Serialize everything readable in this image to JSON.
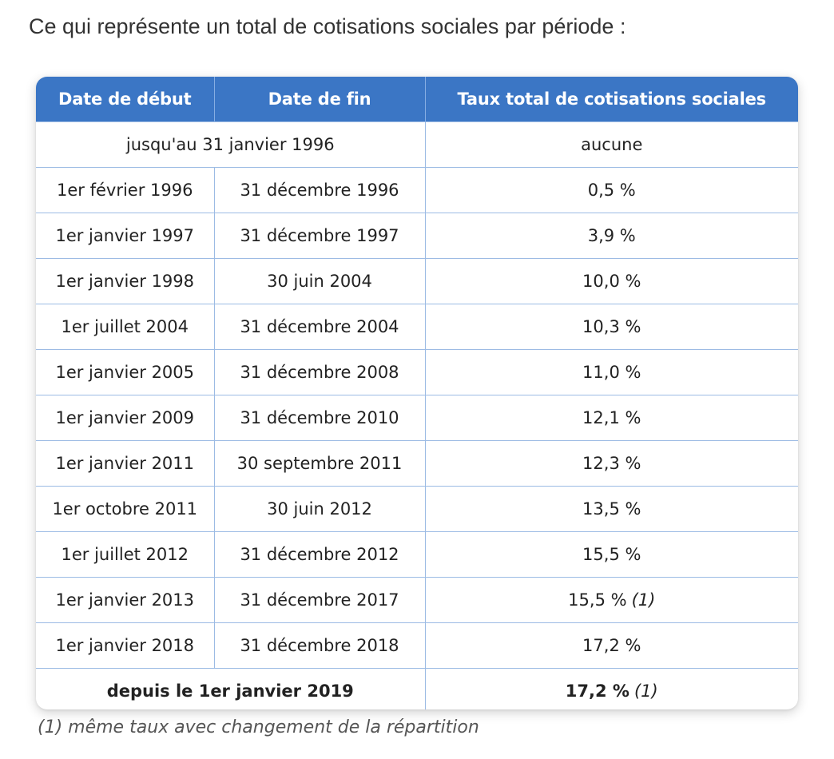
{
  "intro": "Ce qui représente un total de cotisations sociales par période :",
  "table": {
    "headers": [
      "Date de début",
      "Date de fin",
      "Taux total de cotisations sociales"
    ],
    "first_row": {
      "period": "jusqu'au 31 janvier 1996",
      "rate": "aucune"
    },
    "rows": [
      {
        "start": "1er février 1996",
        "end": "31 décembre 1996",
        "rate": "0,5 %",
        "note": ""
      },
      {
        "start": "1er janvier 1997",
        "end": "31 décembre 1997",
        "rate": "3,9 %",
        "note": ""
      },
      {
        "start": "1er janvier 1998",
        "end": "30 juin 2004",
        "rate": "10,0 %",
        "note": ""
      },
      {
        "start": "1er juillet 2004",
        "end": "31 décembre 2004",
        "rate": "10,3 %",
        "note": ""
      },
      {
        "start": "1er janvier 2005",
        "end": "31 décembre 2008",
        "rate": "11,0 %",
        "note": ""
      },
      {
        "start": "1er janvier 2009",
        "end": "31 décembre 2010",
        "rate": "12,1 %",
        "note": ""
      },
      {
        "start": "1er janvier 2011",
        "end": "30 septembre 2011",
        "rate": "12,3 %",
        "note": ""
      },
      {
        "start": "1er octobre 2011",
        "end": "30 juin 2012",
        "rate": "13,5 %",
        "note": ""
      },
      {
        "start": "1er juillet 2012",
        "end": "31 décembre 2012",
        "rate": "15,5 %",
        "note": ""
      },
      {
        "start": "1er janvier 2013",
        "end": "31 décembre 2017",
        "rate": "15,5 %",
        "note": "(1)"
      },
      {
        "start": "1er janvier 2018",
        "end": "31 décembre 2018",
        "rate": "17,2 %",
        "note": ""
      }
    ],
    "last_row": {
      "period": "depuis le 1er janvier 2019",
      "rate": "17,2 %",
      "note": "(1)"
    }
  },
  "footnote": "(1) même taux avec changement de la répartition",
  "colors": {
    "header_bg": "#3b76c5",
    "grid": "#9cbbe4"
  }
}
